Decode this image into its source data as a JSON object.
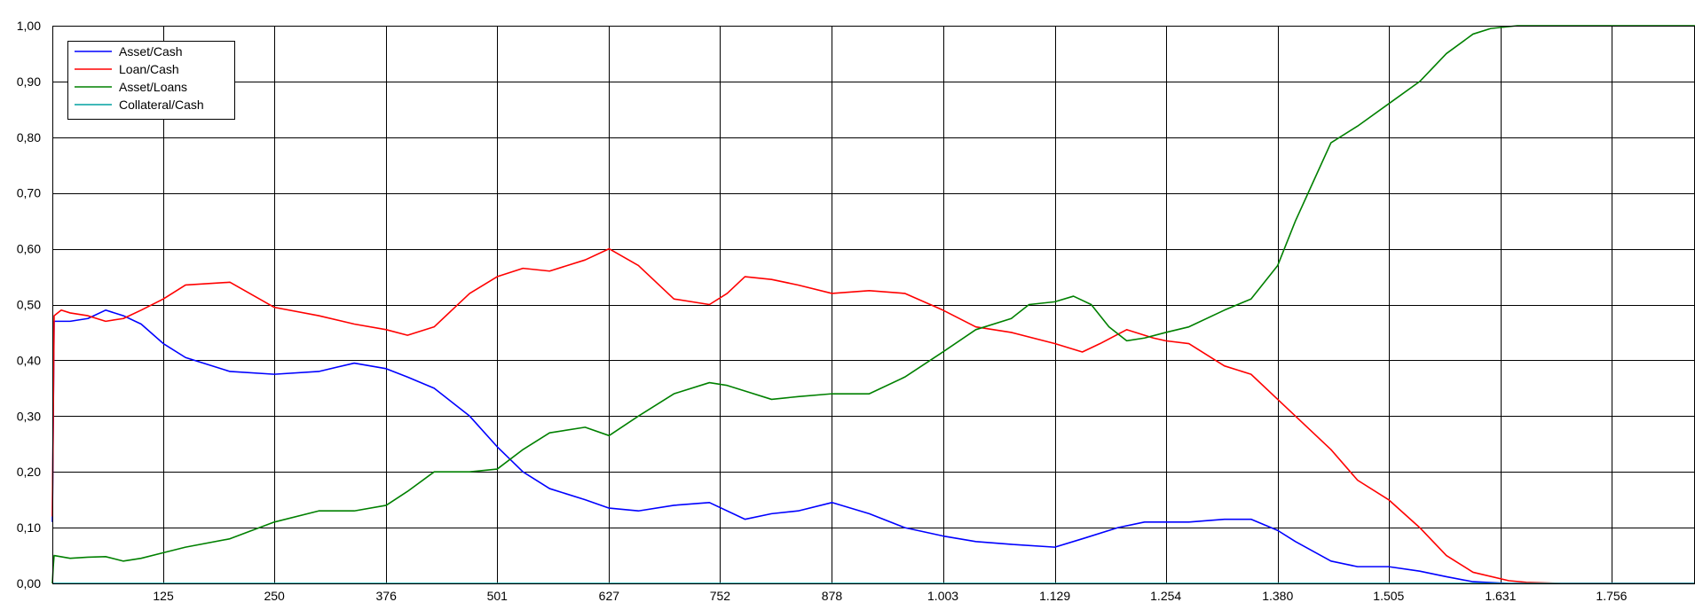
{
  "chart_data": {
    "type": "line",
    "title": "",
    "xlabel": "",
    "ylabel": "",
    "xlim": [
      0,
      1850
    ],
    "ylim": [
      0,
      1
    ],
    "grid": true,
    "legend_position": "top-left",
    "x_ticks": [
      125,
      250,
      376,
      501,
      627,
      752,
      878,
      1003,
      1129,
      1254,
      1380,
      1505,
      1631,
      1756
    ],
    "x_tick_labels": [
      "125",
      "250",
      "376",
      "501",
      "627",
      "752",
      "878",
      "1.003",
      "1.129",
      "1.254",
      "1.380",
      "1.505",
      "1.631",
      "1.756"
    ],
    "y_ticks": [
      0,
      0.1,
      0.2,
      0.3,
      0.4,
      0.5,
      0.6,
      0.7,
      0.8,
      0.9,
      1.0
    ],
    "y_tick_labels": [
      "0,00",
      "0,10",
      "0,20",
      "0,30",
      "0,40",
      "0,50",
      "0,60",
      "0,70",
      "0,80",
      "0,90",
      "1,00"
    ],
    "series": [
      {
        "name": "Asset/Cash",
        "color": "#0000ff",
        "x": [
          0,
          2,
          20,
          40,
          60,
          80,
          100,
          125,
          150,
          200,
          250,
          300,
          340,
          376,
          400,
          430,
          470,
          501,
          530,
          560,
          600,
          627,
          660,
          700,
          740,
          780,
          810,
          840,
          878,
          920,
          960,
          1003,
          1040,
          1080,
          1129,
          1160,
          1200,
          1230,
          1254,
          1280,
          1320,
          1350,
          1380,
          1400,
          1440,
          1470,
          1505,
          1540,
          1570,
          1600,
          1640,
          1850
        ],
        "values": [
          0.11,
          0.47,
          0.47,
          0.475,
          0.49,
          0.48,
          0.465,
          0.43,
          0.405,
          0.38,
          0.375,
          0.38,
          0.395,
          0.385,
          0.37,
          0.35,
          0.3,
          0.245,
          0.2,
          0.17,
          0.15,
          0.135,
          0.13,
          0.14,
          0.145,
          0.115,
          0.125,
          0.13,
          0.145,
          0.125,
          0.1,
          0.085,
          0.075,
          0.07,
          0.065,
          0.08,
          0.1,
          0.11,
          0.11,
          0.11,
          0.115,
          0.115,
          0.095,
          0.075,
          0.04,
          0.03,
          0.03,
          0.022,
          0.012,
          0.003,
          0.0,
          0.0
        ]
      },
      {
        "name": "Loan/Cash",
        "color": "#ff0000",
        "x": [
          0,
          1,
          2,
          10,
          20,
          40,
          60,
          80,
          100,
          125,
          150,
          200,
          250,
          300,
          340,
          376,
          400,
          430,
          470,
          501,
          530,
          560,
          600,
          627,
          660,
          700,
          740,
          760,
          780,
          810,
          840,
          878,
          920,
          960,
          1003,
          1040,
          1080,
          1129,
          1160,
          1180,
          1210,
          1240,
          1254,
          1280,
          1320,
          1350,
          1380,
          1400,
          1440,
          1470,
          1505,
          1540,
          1570,
          1600,
          1640,
          1660,
          1700,
          1850
        ],
        "values": [
          0.12,
          0.3,
          0.48,
          0.49,
          0.485,
          0.48,
          0.47,
          0.475,
          0.49,
          0.51,
          0.535,
          0.54,
          0.495,
          0.48,
          0.465,
          0.455,
          0.445,
          0.46,
          0.52,
          0.55,
          0.565,
          0.56,
          0.58,
          0.6,
          0.57,
          0.51,
          0.5,
          0.52,
          0.55,
          0.545,
          0.535,
          0.52,
          0.525,
          0.52,
          0.49,
          0.46,
          0.45,
          0.43,
          0.415,
          0.43,
          0.455,
          0.44,
          0.435,
          0.43,
          0.39,
          0.375,
          0.33,
          0.3,
          0.24,
          0.185,
          0.15,
          0.1,
          0.05,
          0.02,
          0.005,
          0.002,
          0.0,
          0.0
        ]
      },
      {
        "name": "Asset/Loans",
        "color": "#008000",
        "x": [
          0,
          1,
          2,
          20,
          40,
          60,
          80,
          100,
          125,
          150,
          200,
          250,
          300,
          340,
          376,
          400,
          430,
          470,
          501,
          530,
          560,
          600,
          627,
          660,
          700,
          740,
          760,
          780,
          810,
          840,
          878,
          920,
          960,
          1003,
          1040,
          1080,
          1100,
          1129,
          1150,
          1170,
          1190,
          1210,
          1230,
          1254,
          1280,
          1320,
          1350,
          1380,
          1400,
          1420,
          1440,
          1470,
          1505,
          1540,
          1570,
          1600,
          1620,
          1650,
          1700,
          1850
        ],
        "values": [
          0.0,
          0.03,
          0.05,
          0.045,
          0.047,
          0.048,
          0.04,
          0.045,
          0.055,
          0.065,
          0.08,
          0.11,
          0.13,
          0.13,
          0.14,
          0.165,
          0.2,
          0.2,
          0.205,
          0.24,
          0.27,
          0.28,
          0.265,
          0.3,
          0.34,
          0.36,
          0.355,
          0.345,
          0.33,
          0.335,
          0.34,
          0.34,
          0.37,
          0.415,
          0.455,
          0.475,
          0.5,
          0.505,
          0.515,
          0.5,
          0.46,
          0.435,
          0.44,
          0.45,
          0.46,
          0.49,
          0.51,
          0.57,
          0.65,
          0.72,
          0.79,
          0.82,
          0.86,
          0.9,
          0.95,
          0.985,
          0.995,
          1.0,
          1.0,
          1.0
        ]
      },
      {
        "name": "Collateral/Cash",
        "color": "#00a0a0",
        "x": [
          0,
          1850
        ],
        "values": [
          0.0,
          0.0
        ]
      }
    ]
  }
}
